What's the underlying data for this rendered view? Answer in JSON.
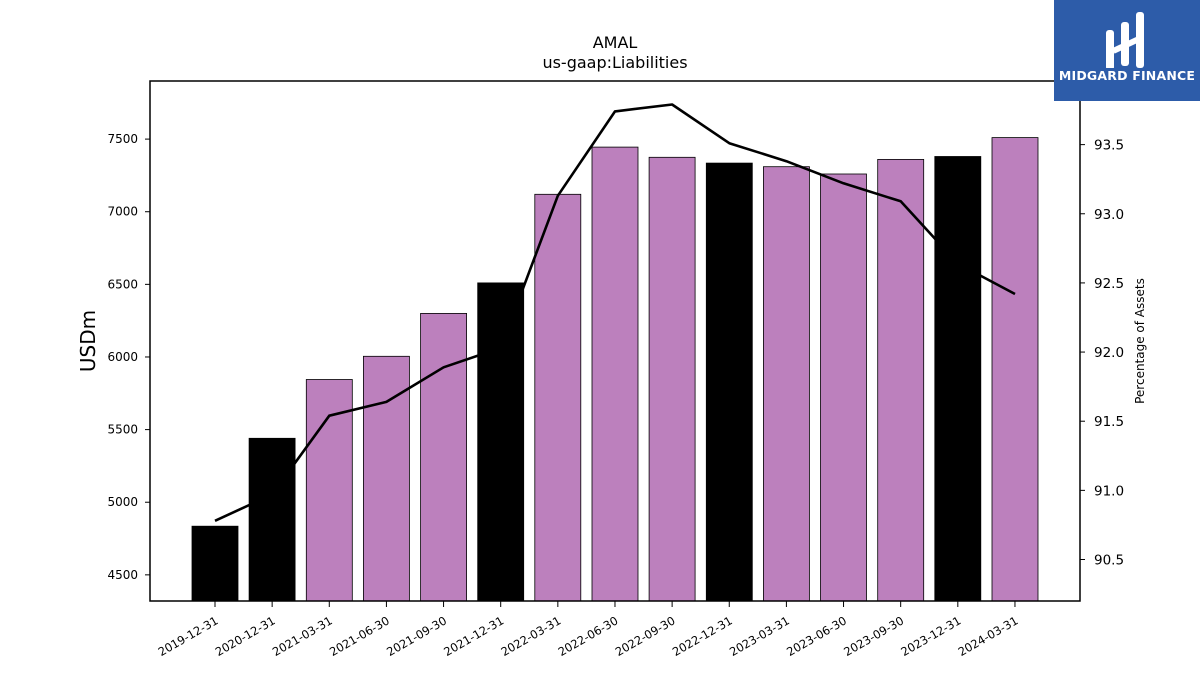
{
  "brand": {
    "name": "MIDGARD FINANCE",
    "box_color": "#2d5ca9"
  },
  "chart_data": {
    "type": "bar",
    "title": "AMAL",
    "subtitle": "us-gaap:Liabilities",
    "ylabel": "USDm",
    "y2label": "Percentage of Assets",
    "categories": [
      "2019-12-31",
      "2020-12-31",
      "2021-03-31",
      "2021-06-30",
      "2021-09-30",
      "2021-12-31",
      "2022-03-31",
      "2022-06-30",
      "2022-09-30",
      "2022-12-31",
      "2023-03-31",
      "2023-06-30",
      "2023-09-30",
      "2023-12-31",
      "2024-03-31"
    ],
    "values": [
      4835,
      5440,
      5845,
      6005,
      6300,
      6510,
      7120,
      7445,
      7375,
      7335,
      7310,
      7260,
      7360,
      7380,
      7510
    ],
    "bar_colors": [
      "#000000",
      "#000000",
      "#bc80bd",
      "#bc80bd",
      "#bc80bd",
      "#000000",
      "#bc80bd",
      "#bc80bd",
      "#bc80bd",
      "#000000",
      "#bc80bd",
      "#bc80bd",
      "#bc80bd",
      "#000000",
      "#bc80bd"
    ],
    "line_series": {
      "name": "",
      "color": "#000000",
      "values": [
        90.78,
        90.97,
        91.54,
        91.64,
        91.89,
        92.03,
        93.13,
        93.74,
        93.79,
        93.51,
        93.38,
        93.22,
        93.09,
        92.64,
        92.42
      ]
    },
    "ylim": [
      4320,
      7900
    ],
    "y_ticks": [
      4500,
      5000,
      5500,
      6000,
      6500,
      7000,
      7500
    ],
    "y2lim": [
      90.2,
      93.96
    ],
    "y2_ticks": [
      "90.5",
      "91.0",
      "91.5",
      "92.0",
      "92.5",
      "93.0",
      "93.5"
    ],
    "grid": false
  }
}
